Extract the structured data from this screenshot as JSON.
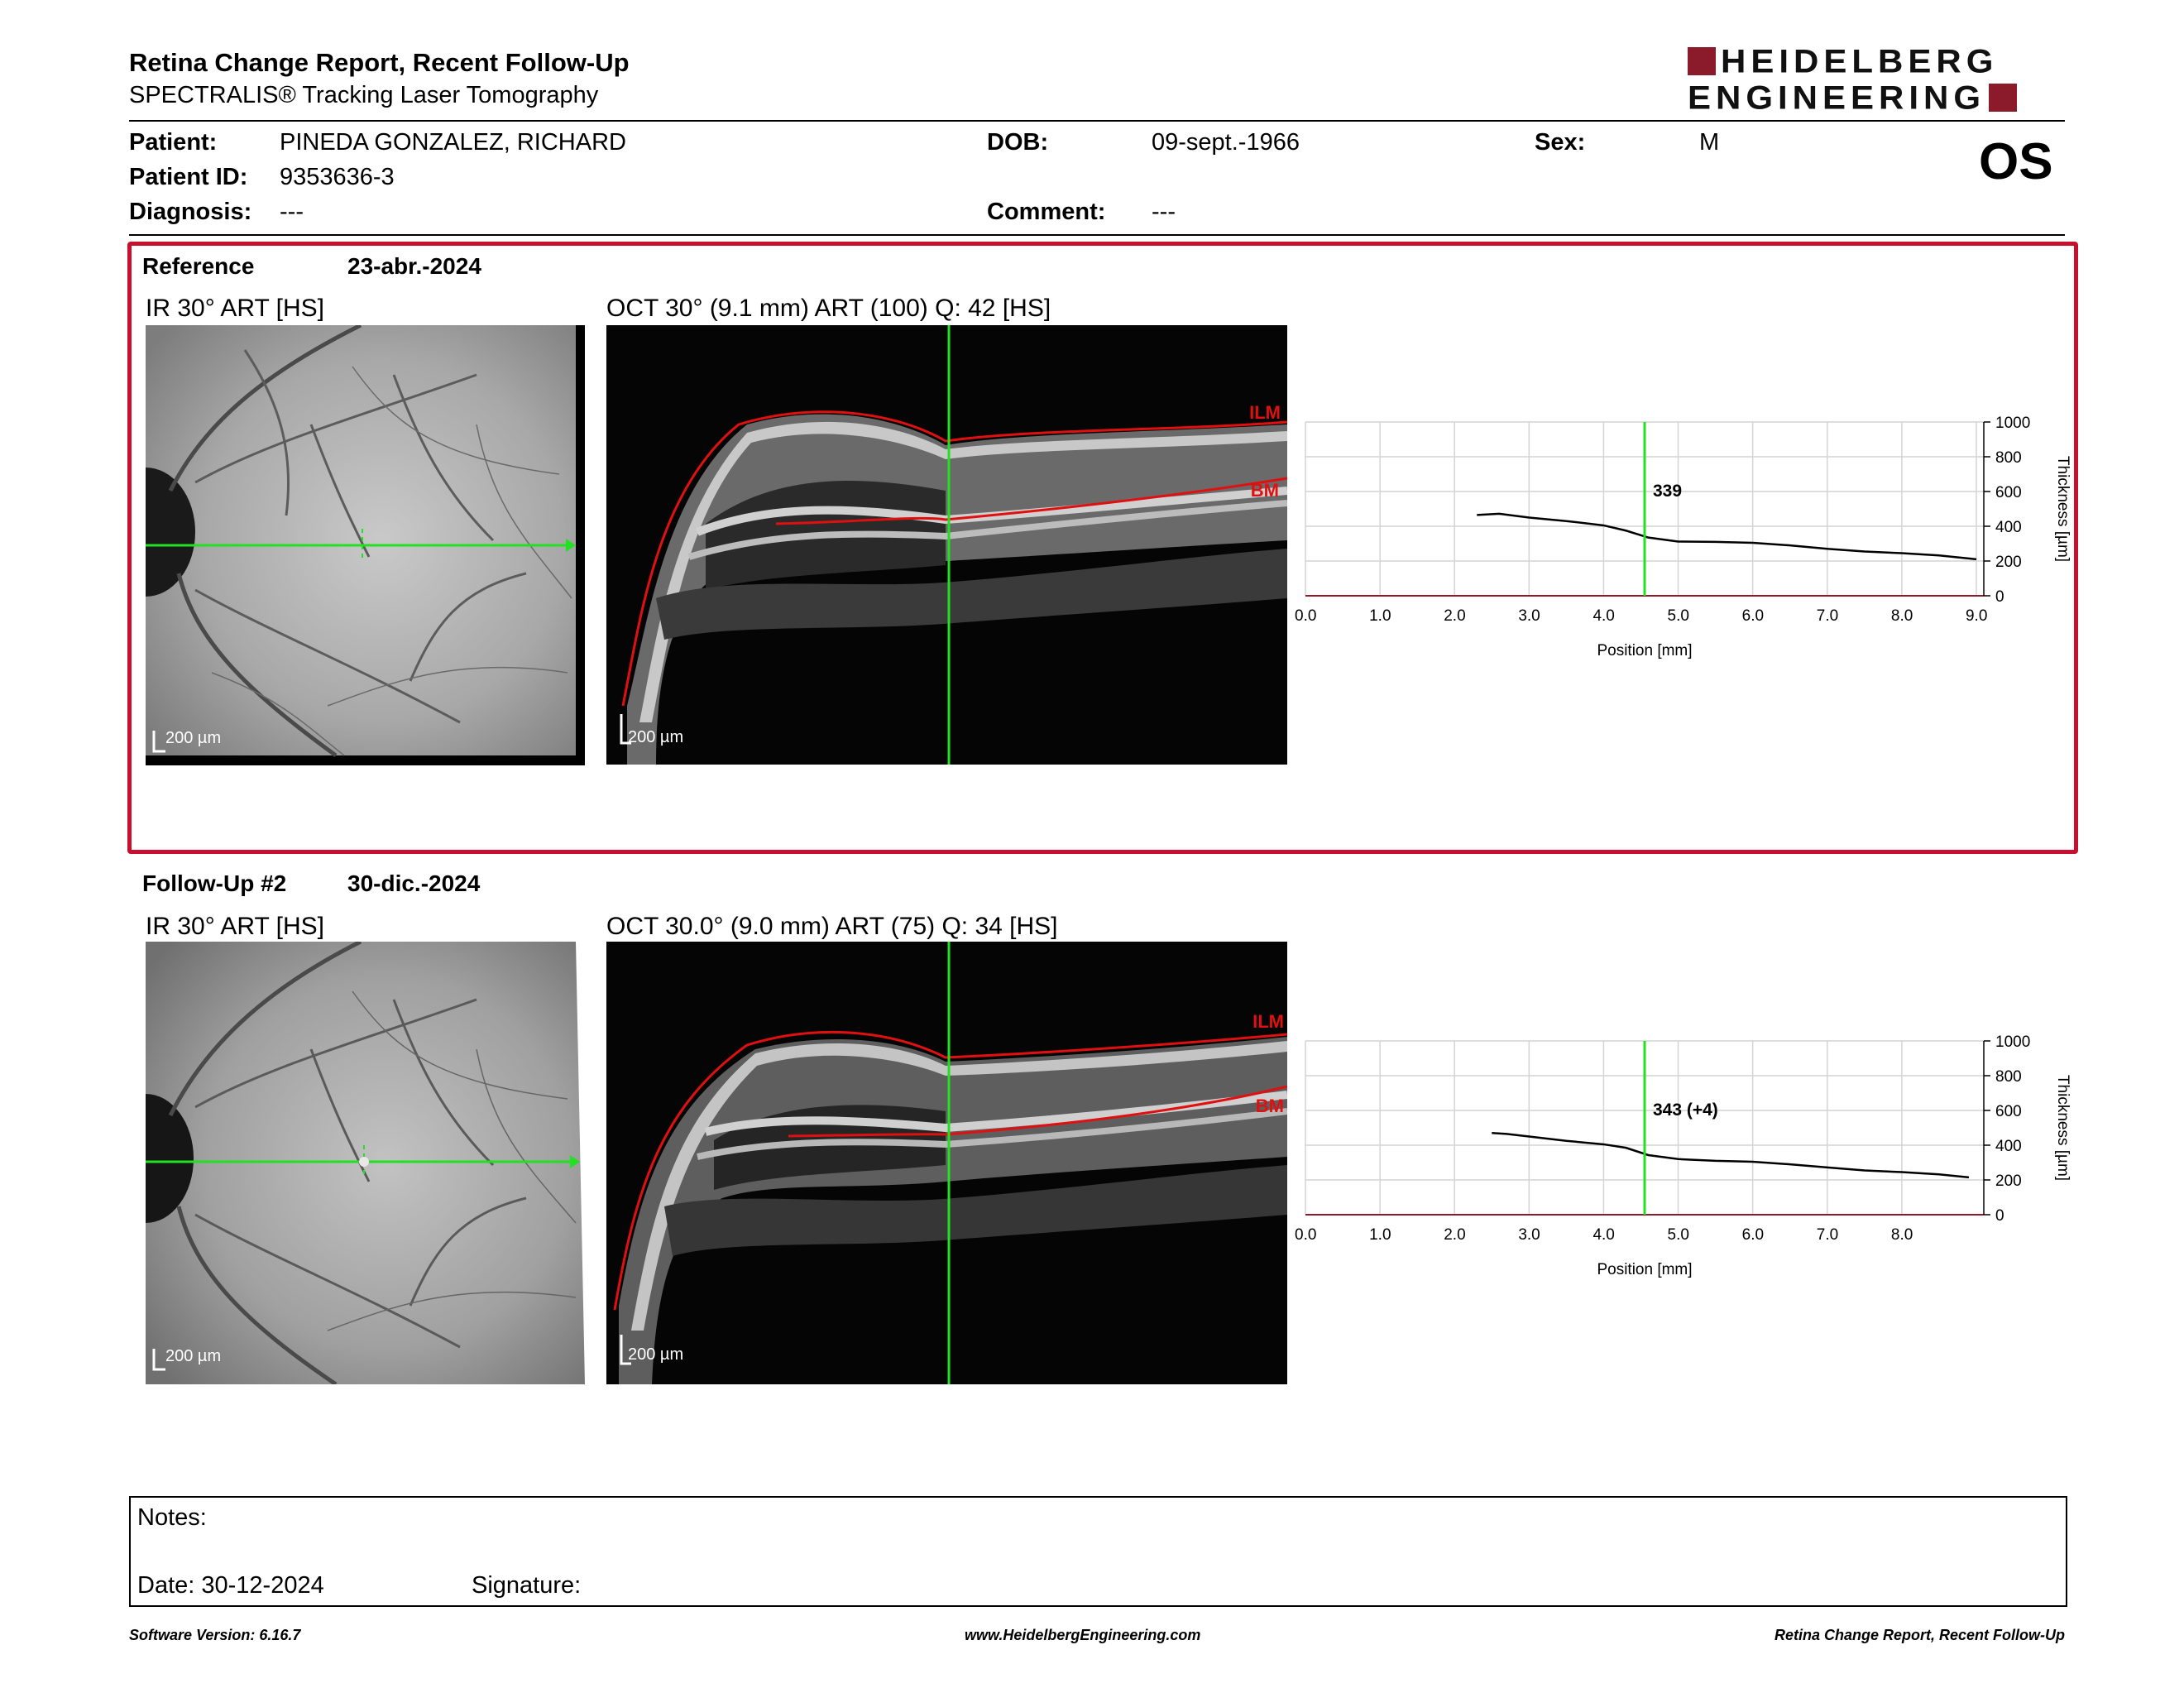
{
  "header": {
    "title": "Retina Change Report, Recent Follow-Up",
    "subtitle": "SPECTRALIS® Tracking Laser Tomography",
    "logo_line1": "HEIDELBERG",
    "logo_line2": "ENGINEERING",
    "eye": "OS"
  },
  "patient": {
    "patient_label": "Patient:",
    "patient_value": "PINEDA GONZALEZ, RICHARD",
    "id_label": "Patient ID:",
    "id_value": "9353636-3",
    "diagnosis_label": "Diagnosis:",
    "diagnosis_value": "---",
    "dob_label": "DOB:",
    "dob_value": "09-sept.-1966",
    "comment_label": "Comment:",
    "comment_value": "---",
    "sex_label": "Sex:",
    "sex_value": "M"
  },
  "colors": {
    "brand_red": "#8b1a2b",
    "reference_border": "#c8102e",
    "scan_line": "#22e022",
    "layer_line": "#e01010"
  },
  "exams": [
    {
      "label": "Reference",
      "date": "23-abr.-2024",
      "ir_title": "IR 30° ART [HS]",
      "oct_title": "OCT 30° (9.1 mm) ART (100) Q: 42 [HS]",
      "ir_scale": "200 µm",
      "oct_scale": "200 µm",
      "layer_top": "ILM",
      "layer_bottom": "BM",
      "marker_label": "339"
    },
    {
      "label": "Follow-Up #2",
      "date": "30-dic.-2024",
      "ir_title": "IR 30° ART [HS]",
      "oct_title": "OCT 30.0° (9.0 mm) ART (75) Q: 34 [HS]",
      "ir_scale": "200 µm",
      "oct_scale": "200 µm",
      "layer_top": "ILM",
      "layer_bottom": "BM",
      "marker_label": "343 (+4)"
    }
  ],
  "chart_data": [
    {
      "type": "line",
      "xlabel": "Position [mm]",
      "ylabel": "Thickness [µm]",
      "xlim": [
        0,
        9.1
      ],
      "ylim": [
        0,
        1000
      ],
      "x_ticks": [
        "0.0",
        "1.0",
        "2.0",
        "3.0",
        "4.0",
        "5.0",
        "6.0",
        "7.0",
        "8.0",
        "9.0"
      ],
      "y_ticks": [
        "0",
        "200",
        "400",
        "600",
        "800",
        "1000"
      ],
      "marker_x": 4.55,
      "marker_value": "339",
      "x": [
        2.3,
        2.6,
        3.0,
        3.5,
        4.0,
        4.3,
        4.6,
        5.0,
        5.5,
        6.0,
        6.5,
        7.0,
        7.5,
        8.0,
        8.5,
        9.0
      ],
      "y": [
        465,
        472,
        450,
        430,
        405,
        375,
        335,
        312,
        310,
        305,
        290,
        270,
        255,
        245,
        232,
        210
      ]
    },
    {
      "type": "line",
      "xlabel": "Position [mm]",
      "ylabel": "Thickness [µm]",
      "xlim": [
        0,
        9.1
      ],
      "ylim": [
        0,
        1000
      ],
      "x_ticks": [
        "0.0",
        "1.0",
        "2.0",
        "3.0",
        "4.0",
        "5.0",
        "6.0",
        "7.0",
        "8.0"
      ],
      "y_ticks": [
        "0",
        "200",
        "400",
        "600",
        "800",
        "1000"
      ],
      "marker_x": 4.55,
      "marker_value": "343 (+4)",
      "x": [
        2.5,
        2.7,
        3.0,
        3.5,
        4.0,
        4.3,
        4.6,
        5.0,
        5.5,
        6.0,
        6.5,
        7.0,
        7.5,
        8.0,
        8.5,
        8.9
      ],
      "y": [
        470,
        465,
        450,
        425,
        405,
        385,
        343,
        320,
        310,
        305,
        290,
        272,
        255,
        245,
        232,
        215
      ]
    }
  ],
  "notes": {
    "notes_label": "Notes:",
    "date_label": "Date: 30-12-2024",
    "signature_label": "Signature:"
  },
  "footer": {
    "left": "Software Version: 6.16.7",
    "center": "www.HeidelbergEngineering.com",
    "right": "Retina Change Report, Recent Follow-Up"
  }
}
